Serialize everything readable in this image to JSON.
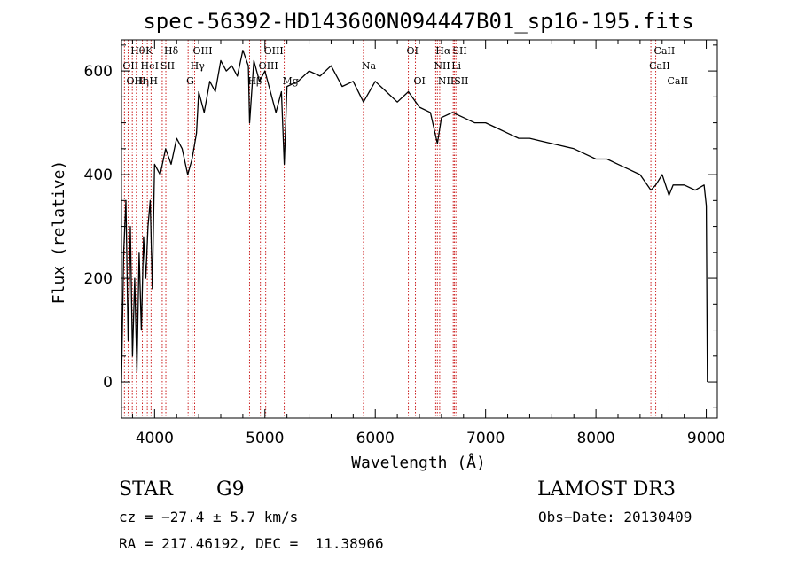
{
  "chart_data": {
    "type": "line",
    "title": "spec-56392-HD143600N094447B01_sp16-195.fits",
    "xlabel": "Wavelength (Å)",
    "ylabel": "Flux (relative)",
    "xlim": [
      3700,
      9100
    ],
    "ylim": [
      -70,
      660
    ],
    "x_ticks": [
      4000,
      5000,
      6000,
      7000,
      8000,
      9000
    ],
    "y_ticks": [
      0,
      200,
      400,
      600
    ],
    "series": [
      {
        "name": "spectrum",
        "x": [
          3700,
          3720,
          3740,
          3760,
          3780,
          3800,
          3820,
          3840,
          3860,
          3880,
          3900,
          3920,
          3940,
          3960,
          3980,
          4000,
          4050,
          4100,
          4150,
          4200,
          4250,
          4300,
          4340,
          4380,
          4400,
          4450,
          4500,
          4550,
          4600,
          4650,
          4700,
          4750,
          4800,
          4850,
          4861,
          4900,
          4950,
          5000,
          5050,
          5100,
          5150,
          5175,
          5200,
          5300,
          5400,
          5500,
          5600,
          5700,
          5800,
          5893,
          6000,
          6100,
          6200,
          6300,
          6400,
          6500,
          6563,
          6600,
          6700,
          6800,
          6900,
          7000,
          7100,
          7200,
          7300,
          7400,
          7500,
          7600,
          7700,
          7800,
          7900,
          8000,
          8100,
          8200,
          8300,
          8400,
          8498,
          8542,
          8600,
          8662,
          8700,
          8800,
          8900,
          8980,
          9000,
          9010
        ],
        "values": [
          0,
          250,
          350,
          80,
          300,
          50,
          200,
          20,
          250,
          100,
          280,
          200,
          300,
          350,
          180,
          420,
          400,
          450,
          420,
          470,
          450,
          400,
          430,
          480,
          560,
          520,
          580,
          560,
          620,
          600,
          610,
          590,
          640,
          610,
          500,
          620,
          580,
          600,
          560,
          520,
          560,
          420,
          570,
          580,
          600,
          590,
          610,
          570,
          580,
          540,
          580,
          560,
          540,
          560,
          530,
          520,
          460,
          510,
          520,
          510,
          500,
          500,
          490,
          480,
          470,
          470,
          465,
          460,
          455,
          450,
          440,
          430,
          430,
          420,
          410,
          400,
          370,
          380,
          400,
          360,
          380,
          380,
          370,
          380,
          340,
          0
        ]
      }
    ],
    "line_markers": [
      {
        "label": "Hθ",
        "wavelength": 3798,
        "row": 1
      },
      {
        "label": "OII",
        "wavelength": 3727,
        "row": 2
      },
      {
        "label": "OIII",
        "wavelength": 3760,
        "row": 3
      },
      {
        "label": "Hη",
        "wavelength": 3835,
        "row": 3
      },
      {
        "label": "K",
        "wavelength": 3934,
        "row": 1
      },
      {
        "label": "HeI",
        "wavelength": 3889,
        "row": 2
      },
      {
        "label": "H",
        "wavelength": 3968,
        "row": 3
      },
      {
        "label": "Hδ",
        "wavelength": 4102,
        "row": 1
      },
      {
        "label": "SII",
        "wavelength": 4069,
        "row": 2
      },
      {
        "label": "OIII",
        "wavelength": 4363,
        "row": 1
      },
      {
        "label": "Hγ",
        "wavelength": 4340,
        "row": 2
      },
      {
        "label": "G",
        "wavelength": 4304,
        "row": 3
      },
      {
        "label": "OIII",
        "wavelength": 5007,
        "row": 1
      },
      {
        "label": "OIII",
        "wavelength": 4959,
        "row": 2
      },
      {
        "label": "Hβ",
        "wavelength": 4861,
        "row": 3
      },
      {
        "label": "Mg",
        "wavelength": 5175,
        "row": 3
      },
      {
        "label": "Na",
        "wavelength": 5893,
        "row": 2
      },
      {
        "label": "OI",
        "wavelength": 6300,
        "row": 1
      },
      {
        "label": "OI",
        "wavelength": 6364,
        "row": 3
      },
      {
        "label": "Hα",
        "wavelength": 6563,
        "row": 1
      },
      {
        "label": "SII",
        "wavelength": 6717,
        "row": 1
      },
      {
        "label": "NII",
        "wavelength": 6548,
        "row": 2
      },
      {
        "label": "Li",
        "wavelength": 6707,
        "row": 2
      },
      {
        "label": "NII",
        "wavelength": 6584,
        "row": 3
      },
      {
        "label": "SII",
        "wavelength": 6731,
        "row": 3
      },
      {
        "label": "CaII",
        "wavelength": 8542,
        "row": 1
      },
      {
        "label": "CaII",
        "wavelength": 8498,
        "row": 2
      },
      {
        "label": "CaII",
        "wavelength": 8662,
        "row": 3
      }
    ],
    "marker_color": "#cc2222"
  },
  "info": {
    "object_class": "STAR",
    "subclass": "G9",
    "survey": "LAMOST DR3",
    "cz": "cz = −27.4 ± 5.7 km/s",
    "obs_date": "Obs−Date: 20130409",
    "coords": "RA = 217.46192, DEC =  11.38966"
  }
}
